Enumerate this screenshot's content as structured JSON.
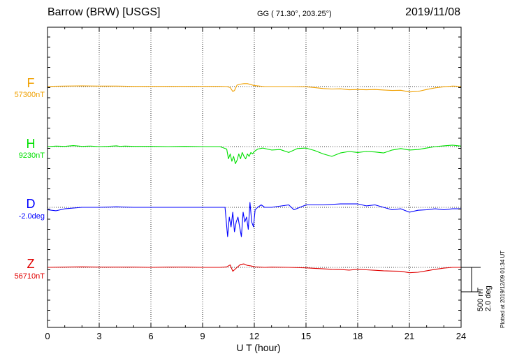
{
  "header": {
    "station": "Barrow (BRW)  [USGS]",
    "coords": "GG ( 71.30°, 203.25°)",
    "date": "2019/11/08"
  },
  "scale": {
    "nt": "500 nT",
    "deg": "2.0 deg"
  },
  "plotted_at": "Plotted at 2019/12/09 01:34 UT",
  "chart_data": {
    "type": "line",
    "xlabel": "U T (hour)",
    "xlim": [
      0,
      24
    ],
    "xticks": [
      0,
      3,
      6,
      9,
      12,
      15,
      18,
      21,
      24
    ],
    "scale_bar": {
      "nT": 500,
      "deg": 2.0
    },
    "series": [
      {
        "name": "F",
        "baseline_label": "57300nT",
        "color": "#f0a000",
        "unit": "nT",
        "x": [
          0,
          1,
          2,
          3,
          4,
          5,
          6,
          7,
          8,
          9,
          10,
          10.4,
          10.6,
          10.75,
          10.85,
          11.0,
          11.2,
          11.4,
          11.6,
          11.8,
          12.0,
          12.3,
          12.6,
          13,
          14,
          15,
          15.5,
          16,
          16.5,
          17,
          17.5,
          18,
          18.5,
          19,
          19.5,
          20,
          20.5,
          21,
          21.5,
          22,
          22.5,
          23,
          23.5,
          24
        ],
        "y": [
          5,
          10,
          15,
          10,
          10,
          5,
          5,
          5,
          5,
          5,
          5,
          0,
          -20,
          -100,
          -80,
          30,
          50,
          60,
          60,
          40,
          20,
          10,
          0,
          0,
          0,
          -5,
          -20,
          -40,
          -50,
          -45,
          -65,
          -60,
          -65,
          -60,
          -70,
          -80,
          -75,
          -110,
          -100,
          -60,
          -25,
          -5,
          10,
          5
        ]
      },
      {
        "name": "H",
        "baseline_label": "9230nT",
        "color": "#00e000",
        "unit": "nT",
        "x": [
          0,
          0.5,
          1,
          1.5,
          2,
          2.5,
          3,
          3.5,
          4,
          4.2,
          4.5,
          5,
          6,
          7,
          8,
          9,
          10,
          10.4,
          10.5,
          10.6,
          10.7,
          10.8,
          10.9,
          11.0,
          11.1,
          11.2,
          11.3,
          11.4,
          11.5,
          11.6,
          11.7,
          11.8,
          11.9,
          12.0,
          12.2,
          12.5,
          13,
          13.5,
          14,
          14.5,
          15,
          15.5,
          16,
          16.5,
          17,
          17.5,
          18,
          18.5,
          19,
          19.5,
          20,
          20.5,
          21,
          21.5,
          22,
          22.5,
          23,
          23.5,
          24
        ],
        "y": [
          0,
          10,
          5,
          20,
          5,
          10,
          0,
          5,
          15,
          5,
          10,
          5,
          5,
          0,
          5,
          0,
          0,
          -50,
          -250,
          -150,
          -300,
          -200,
          -350,
          -280,
          -150,
          -250,
          -120,
          -200,
          -250,
          -150,
          -200,
          -120,
          -150,
          -100,
          -50,
          -30,
          -70,
          -60,
          -120,
          -40,
          -30,
          -80,
          -150,
          -200,
          -130,
          -100,
          -120,
          -100,
          -110,
          -130,
          -70,
          -40,
          -70,
          -60,
          -30,
          0,
          15,
          30,
          10
        ]
      },
      {
        "name": "D",
        "baseline_label": "-2.0deg",
        "color": "#0000ff",
        "unit": "deg",
        "x": [
          0,
          0.5,
          1,
          2,
          3,
          4,
          5,
          6,
          7,
          8,
          9,
          10,
          10.3,
          10.45,
          10.55,
          10.65,
          10.75,
          10.85,
          10.95,
          11.05,
          11.15,
          11.25,
          11.35,
          11.45,
          11.55,
          11.65,
          11.75,
          11.85,
          11.95,
          12.05,
          12.2,
          12.4,
          12.6,
          13,
          14,
          14.3,
          15,
          16,
          17,
          18,
          18.5,
          19,
          19.5,
          20,
          20.5,
          21,
          21.5,
          22,
          22.5,
          23,
          23.5,
          24
        ],
        "y": [
          -0.2,
          -0.28,
          -0.12,
          0.0,
          0.0,
          0.04,
          0.0,
          0.0,
          0.0,
          0.0,
          0.0,
          0.0,
          0.0,
          -2.4,
          -0.8,
          -1.6,
          -0.4,
          -2.0,
          -1.2,
          -0.8,
          -1.6,
          -2.4,
          -0.4,
          -1.2,
          -0.8,
          -1.8,
          0.4,
          -1.2,
          -1.6,
          -0.2,
          0.0,
          0.2,
          0.0,
          0.0,
          0.2,
          -0.2,
          0.2,
          0.2,
          0.28,
          0.28,
          0.12,
          0.2,
          0.0,
          -0.2,
          -0.12,
          -0.4,
          -0.24,
          -0.2,
          -0.12,
          -0.2,
          -0.12,
          -0.12
        ]
      },
      {
        "name": "Z",
        "baseline_label": "56710nT",
        "color": "#e00000",
        "unit": "nT",
        "x": [
          0,
          1,
          2,
          3,
          4,
          5,
          6,
          7,
          8,
          9,
          10,
          10.4,
          10.6,
          10.75,
          10.85,
          11.0,
          11.2,
          11.4,
          11.6,
          11.8,
          12.0,
          12.3,
          12.6,
          13,
          14,
          15,
          15.5,
          16,
          16.5,
          17,
          17.5,
          18,
          18.5,
          19,
          19.5,
          20,
          20.5,
          21,
          21.5,
          22,
          22.5,
          23,
          23.5,
          24
        ],
        "y": [
          0,
          5,
          10,
          5,
          5,
          5,
          0,
          5,
          5,
          0,
          0,
          10,
          50,
          -80,
          -50,
          0,
          60,
          70,
          40,
          30,
          10,
          5,
          0,
          5,
          0,
          -10,
          -20,
          -30,
          -40,
          -45,
          -55,
          -40,
          -50,
          -60,
          -70,
          -75,
          -80,
          -110,
          -100,
          -70,
          -40,
          -15,
          0,
          0
        ]
      }
    ]
  }
}
